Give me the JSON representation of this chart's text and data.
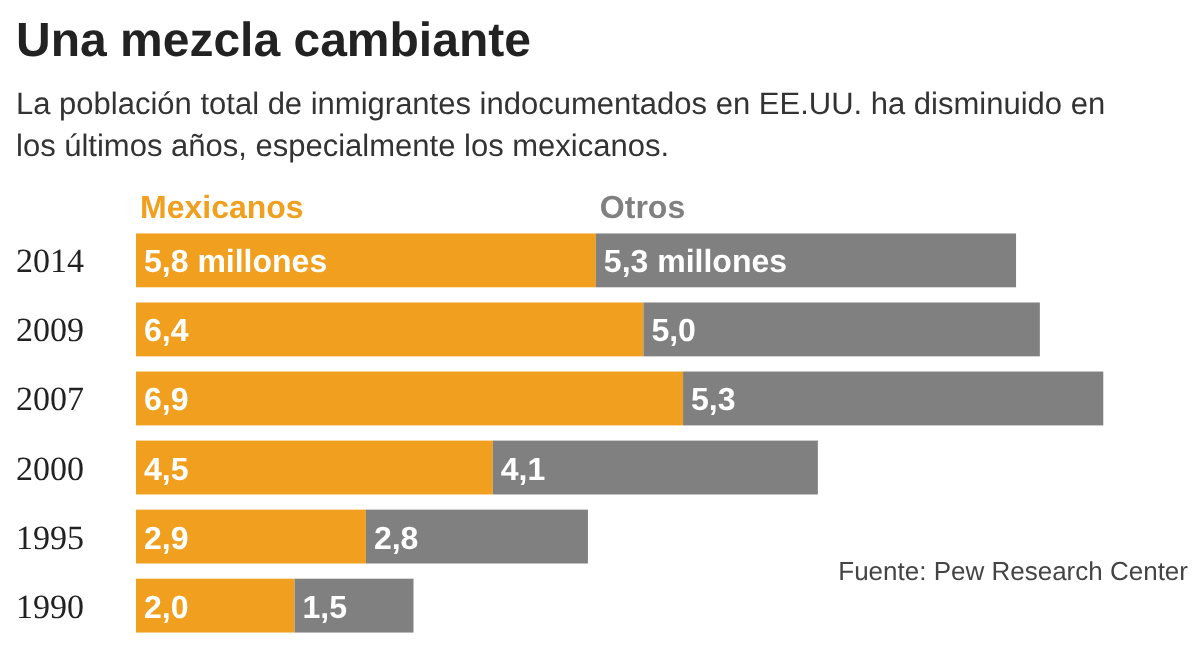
{
  "chart_data": {
    "type": "bar",
    "orientation": "horizontal",
    "stacked": true,
    "title": "Una mezcla cambiante",
    "subtitle": "La población total de inmigrantes indocumentados en EE.UU. ha disminuido en los últimos años, especialmente los mexicanos.",
    "categories": [
      "2014",
      "2009",
      "2007",
      "2000",
      "1995",
      "1990"
    ],
    "series": [
      {
        "name": "Mexicanos",
        "color": "#f0a01e",
        "values": [
          5.8,
          6.4,
          6.9,
          4.5,
          2.9,
          2.0
        ],
        "value_labels": [
          "5,8 millones",
          "6,4",
          "6,9",
          "4,5",
          "2,9",
          "2,0"
        ]
      },
      {
        "name": "Otros",
        "color": "#808080",
        "values": [
          5.3,
          5.0,
          5.3,
          4.1,
          2.8,
          1.5
        ],
        "value_labels": [
          "5,3 millones",
          "5,0",
          "5,3",
          "4,1",
          "2,8",
          "1,5"
        ]
      }
    ],
    "legend": "top left",
    "tick_labels": "y",
    "annotations": [
      "Fuente: Pew Research Center"
    ]
  }
}
